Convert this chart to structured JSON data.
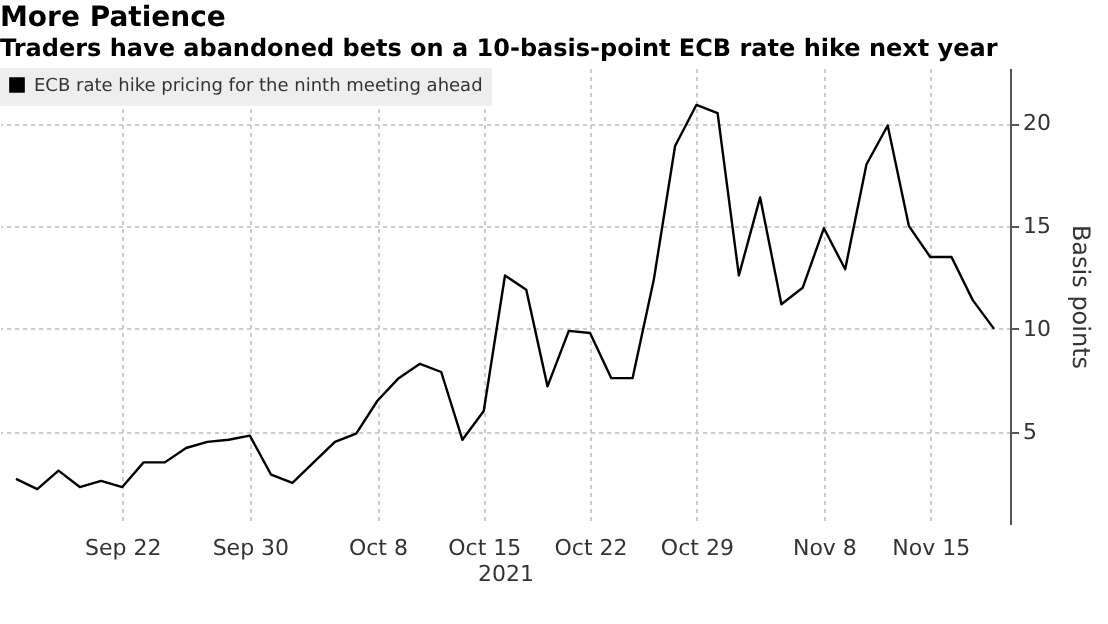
{
  "chart_data": {
    "type": "line",
    "title": "More Patience",
    "subtitle": "Traders have abandoned bets on a 10-basis-point ECB rate hike next year",
    "ylabel": "Basis points",
    "categories": [
      null,
      null,
      null,
      null,
      null,
      "Sep 22",
      null,
      null,
      null,
      null,
      null,
      "Sep 30",
      null,
      null,
      null,
      null,
      null,
      "Oct 8",
      null,
      null,
      null,
      null,
      "Oct 15",
      null,
      null,
      null,
      null,
      "Oct 22",
      null,
      null,
      null,
      null,
      "Oct 29",
      null,
      null,
      null,
      null,
      null,
      "Nov 8",
      null,
      null,
      null,
      null,
      "Nov 15",
      null,
      null,
      null
    ],
    "series": [
      {
        "name": "ECB rate hike pricing for the ninth meeting ahead",
        "color": "#000000",
        "values": [
          2.7,
          2.2,
          3.1,
          2.3,
          2.6,
          2.3,
          3.5,
          3.5,
          4.2,
          4.5,
          4.6,
          4.8,
          2.9,
          2.5,
          3.5,
          4.5,
          4.9,
          6.5,
          7.6,
          8.3,
          7.9,
          4.6,
          6.0,
          12.6,
          11.9,
          7.2,
          9.9,
          9.8,
          7.6,
          7.6,
          12.4,
          18.9,
          20.9,
          20.5,
          12.6,
          16.4,
          11.2,
          12.0,
          14.9,
          12.9,
          18.0,
          19.9,
          15.0,
          13.5,
          13.5,
          11.4,
          10.0
        ]
      }
    ],
    "ylim": [
      0.5,
      22.7
    ],
    "yticks": [
      5,
      10,
      15,
      20
    ],
    "grid": true,
    "legend": "top left",
    "line_style": "solid",
    "marker": "none",
    "xlabel": "2021"
  }
}
